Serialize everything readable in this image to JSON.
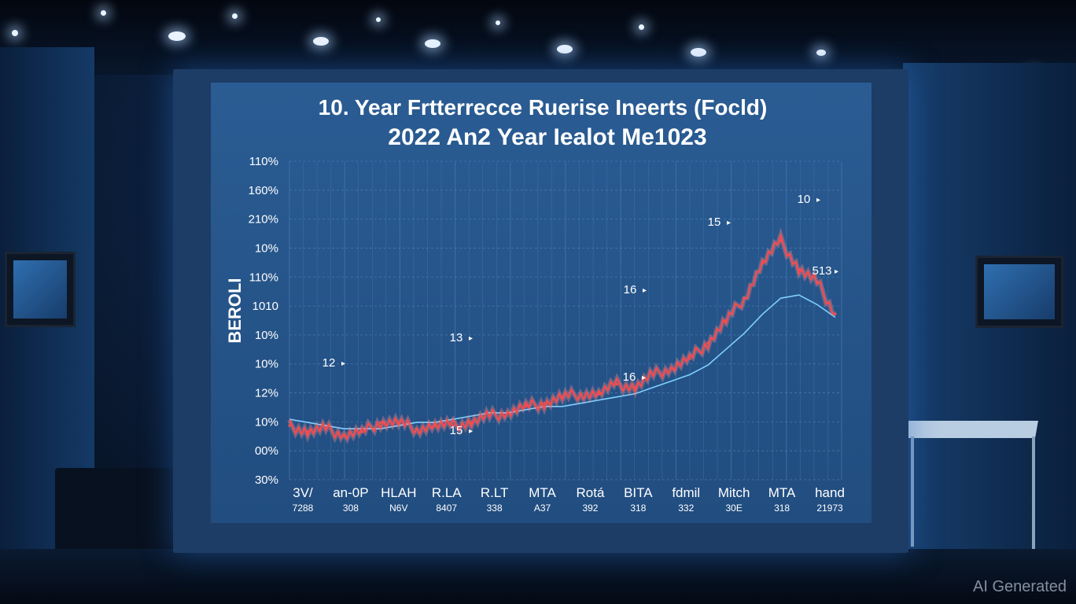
{
  "chart_title": {
    "line1": "10. Year Frtterrecce Ruerise Ineerts (Focld)",
    "line2": "2022 An2 Year Iealot Me1023"
  },
  "ylabel": "BEROLI",
  "y_ticks": [
    "110%",
    "160%",
    "210%",
    "10%",
    "110%",
    "1010",
    "10%",
    "10%",
    "12%",
    "10%",
    "00%",
    "30%"
  ],
  "x_ticks_top": [
    "3V/",
    "an-0P",
    "HLAH",
    "R.LA",
    "R.LT",
    "MTA",
    "Rotá",
    "BITA",
    "fdmil",
    "Mitch",
    "MTA",
    "hand"
  ],
  "x_ticks_bottom": [
    "7288",
    "308",
    "N6V",
    "8407",
    "338",
    "A37",
    "392",
    "318",
    "332",
    "30E",
    "318",
    "21973"
  ],
  "annotations": [
    "12",
    "13",
    "16",
    "15",
    "16",
    "15",
    "10",
    "513"
  ],
  "watermark": "AI Generated",
  "colors": {
    "screen": "#2a5c93",
    "grid": "#4f86bf",
    "series_main": "#ff4a4a",
    "series_trend": "#7fd0ff",
    "text": "#ffffff"
  },
  "chart_data": {
    "type": "line",
    "x": [
      0,
      10,
      20,
      30,
      40,
      50,
      60,
      70,
      80,
      90,
      100,
      110,
      120,
      130,
      140,
      150,
      160,
      170,
      180,
      190,
      200,
      210,
      220,
      230,
      240,
      250,
      260,
      270,
      280,
      290,
      300
    ],
    "series": [
      {
        "values": [
          17,
          15,
          16,
          14,
          15,
          18,
          18,
          16,
          17,
          17,
          18,
          20,
          21,
          23,
          24,
          26,
          27,
          27,
          30,
          29,
          33,
          35,
          38,
          43,
          50,
          57,
          68,
          75,
          66,
          62,
          52
        ]
      },
      {
        "values": [
          19,
          18,
          17,
          16,
          16,
          16,
          17,
          18,
          18,
          19,
          20,
          21,
          21,
          22,
          23,
          23,
          24,
          25,
          26,
          27,
          29,
          31,
          33,
          36,
          41,
          46,
          52,
          57,
          58,
          55,
          51
        ]
      }
    ]
  }
}
